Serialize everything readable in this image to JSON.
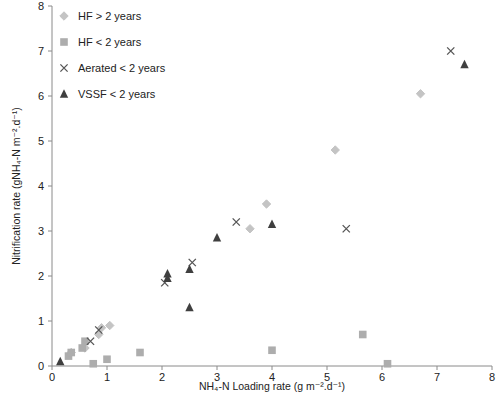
{
  "chart_data": {
    "type": "scatter",
    "x_label": "NH₄-N Loading rate (g m⁻².d⁻¹)",
    "y_label": "Nitrification rate (gNH₄-N m⁻².d⁻¹)",
    "xlim": [
      0,
      8
    ],
    "ylim": [
      0,
      8
    ],
    "xticks": [
      0,
      1,
      2,
      3,
      4,
      5,
      6,
      7,
      8
    ],
    "yticks": [
      0,
      1,
      2,
      3,
      4,
      5,
      6,
      7,
      8
    ],
    "grid": false,
    "legend": "top-left",
    "series": [
      {
        "name": "HF > 2 years",
        "color": "#c4c4c4",
        "marker": "diamond",
        "x": [
          0.35,
          0.6,
          0.85,
          0.9,
          1.05,
          3.6,
          3.9,
          5.15,
          6.7
        ],
        "values": [
          0.3,
          0.4,
          0.7,
          0.85,
          0.9,
          3.05,
          3.6,
          4.8,
          6.05
        ]
      },
      {
        "name": "HF < 2 years",
        "color": "#adadad",
        "marker": "square",
        "x": [
          0.3,
          0.35,
          0.55,
          0.6,
          0.75,
          1.0,
          1.6,
          4.0,
          5.65,
          6.1
        ],
        "values": [
          0.22,
          0.3,
          0.4,
          0.55,
          0.05,
          0.15,
          0.3,
          0.35,
          0.7,
          0.05
        ]
      },
      {
        "name": "Aerated < 2 years",
        "color": "#555555",
        "marker": "x",
        "x": [
          0.7,
          0.85,
          2.05,
          2.55,
          3.35,
          5.35,
          7.25
        ],
        "values": [
          0.55,
          0.8,
          1.85,
          2.3,
          3.2,
          3.05,
          7.0
        ]
      },
      {
        "name": "VSSF < 2 years",
        "color": "#3f3f3f",
        "marker": "triangle",
        "x": [
          0.15,
          2.1,
          2.1,
          2.5,
          2.5,
          3.0,
          4.0,
          7.5
        ],
        "values": [
          0.1,
          2.05,
          1.95,
          2.15,
          1.3,
          2.85,
          3.15,
          6.7
        ]
      }
    ]
  }
}
